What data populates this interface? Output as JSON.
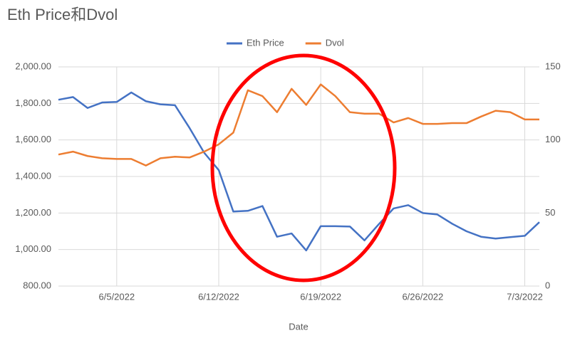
{
  "chart_data": {
    "type": "line",
    "title": "Eth Price和Dvol",
    "x_label": "Date",
    "x": [
      "6/1/2022",
      "6/2/2022",
      "6/3/2022",
      "6/4/2022",
      "6/5/2022",
      "6/6/2022",
      "6/7/2022",
      "6/8/2022",
      "6/9/2022",
      "6/10/2022",
      "6/11/2022",
      "6/12/2022",
      "6/13/2022",
      "6/14/2022",
      "6/15/2022",
      "6/16/2022",
      "6/17/2022",
      "6/18/2022",
      "6/19/2022",
      "6/20/2022",
      "6/21/2022",
      "6/22/2022",
      "6/23/2022",
      "6/24/2022",
      "6/25/2022",
      "6/26/2022",
      "6/27/2022",
      "6/28/2022",
      "6/29/2022",
      "6/30/2022",
      "7/1/2022",
      "7/2/2022",
      "7/3/2022",
      "7/4/2022"
    ],
    "xlim": [
      "6/1/2022",
      "7/4/2022"
    ],
    "xticks": [
      "6/5/2022",
      "6/12/2022",
      "6/19/2022",
      "6/26/2022",
      "7/3/2022"
    ],
    "ylim": [
      800,
      2000
    ],
    "yticks": [
      {
        "value": 800,
        "label": "800.00"
      },
      {
        "value": 1000,
        "label": "1,000.00"
      },
      {
        "value": 1200,
        "label": "1,200.00"
      },
      {
        "value": 1400,
        "label": "1,400.00"
      },
      {
        "value": 1600,
        "label": "1,600.00"
      },
      {
        "value": 1800,
        "label": "1,800.00"
      },
      {
        "value": 2000,
        "label": "2,000.00"
      }
    ],
    "y2lim": [
      0,
      150
    ],
    "y2ticks": [
      0,
      50,
      100,
      150
    ],
    "grid": true,
    "legend": "top",
    "series": [
      {
        "name": "Eth Price",
        "color": "#4472c4",
        "values": [
          1820,
          1835,
          1775,
          1805,
          1808,
          1860,
          1812,
          1795,
          1790,
          1665,
          1530,
          1435,
          1208,
          1212,
          1238,
          1070,
          1088,
          995,
          1128,
          1128,
          1126,
          1050,
          1140,
          1225,
          1243,
          1200,
          1192,
          1142,
          1100,
          1070,
          1060,
          1068,
          1075,
          1150
        ]
      },
      {
        "name": "Dvol",
        "color": "#ed7d31",
        "axis": "y2",
        "values": [
          90,
          92,
          89,
          87.5,
          87,
          87,
          82.5,
          87.5,
          88.5,
          88,
          92,
          97,
          105,
          134,
          130,
          119,
          135,
          124,
          138,
          130,
          119,
          118,
          118,
          112,
          115,
          111,
          111,
          111.5,
          111.5,
          116,
          120,
          119,
          114,
          114
        ]
      }
    ]
  }
}
